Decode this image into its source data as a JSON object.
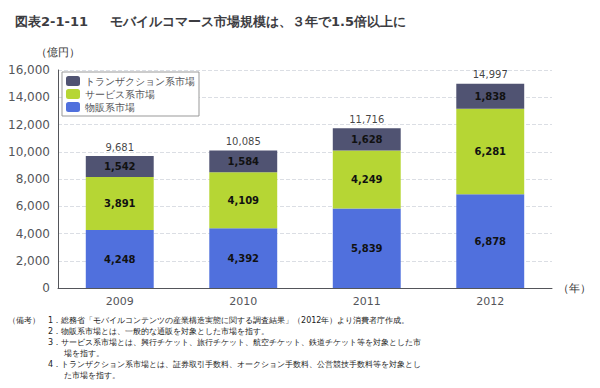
{
  "chart_data": {
    "type": "bar",
    "title": "図表2-1-11",
    "subtitle": "モバイルコマース市場規模は、３年で1.5倍以上に",
    "ylabel": "（億円）",
    "xlabel": "（年）",
    "categories": [
      "2009",
      "2010",
      "2011",
      "2012"
    ],
    "series": [
      {
        "name": "物販系市場",
        "values": [
          4248,
          4392,
          5839,
          6878
        ],
        "value_labels": [
          "4,248",
          "4,392",
          "5,839",
          "6,878"
        ]
      },
      {
        "name": "サービス系市場",
        "values": [
          3891,
          4109,
          4249,
          6281
        ],
        "value_labels": [
          "3,891",
          "4,109",
          "4,249",
          "6,281"
        ]
      },
      {
        "name": "トランザクション系市場",
        "values": [
          1542,
          1584,
          1628,
          1838
        ],
        "value_labels": [
          "1,542",
          "1,584",
          "1,628",
          "1,838"
        ]
      }
    ],
    "totals": [
      9681,
      10085,
      11716,
      14997
    ],
    "total_labels": [
      "9,681",
      "10,085",
      "11,716",
      "14,997"
    ],
    "stacked": true,
    "data_labels": true,
    "ylim": [
      0,
      16000
    ],
    "yticks": [
      0,
      {
        "value": 2000,
        "label": "2,000"
      },
      {
        "value": 4000,
        "label": "4,000"
      },
      {
        "value": 6000,
        "label": "6,000"
      },
      {
        "value": 8000,
        "label": "8,000"
      },
      {
        "value": 10000,
        "label": "10,000"
      },
      {
        "value": 12000,
        "label": "12,000"
      },
      {
        "value": 14000,
        "label": "14,000"
      },
      {
        "value": 16000,
        "label": "16,000"
      }
    ],
    "grid": true,
    "legend": "upper left",
    "annotations": [
      "（備考）　1．総務省「モバイルコンテンツの産業構造実態に関する調査結果」（2012年）より消費者庁作成。",
      "　　　　　2．物販系市場とは、一般的な通販を対象とした市場を指す。",
      "　　　　　3．サービス系市場とは、興行チケット、旅行チケット、航空チケット、鉄道チケット等を対象とした市",
      "　　　　　　　場を指す。",
      "　　　　　4．トランザクション系市場とは、証券取引手数料、オークション手数料、公営競技手数料等を対象とし",
      "　　　　　　　た市場を指す。"
    ]
  }
}
